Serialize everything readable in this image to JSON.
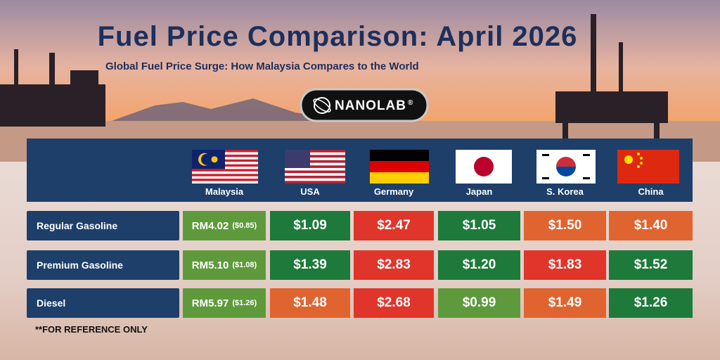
{
  "title": "Fuel Price Comparison: April 2026",
  "subtitle": "Global Fuel Price Surge: How Malaysia Compares to the World",
  "brand": "NANOLAB",
  "brand_mark": "®",
  "columns": [
    "Malaysia",
    "USA",
    "Germany",
    "Japan",
    "S. Korea",
    "China"
  ],
  "rows": [
    {
      "label": "Regular Gasoline",
      "cells": [
        {
          "text": "RM4.02",
          "note": "($0.85)",
          "color": "#5e9a3c"
        },
        {
          "text": "$1.09",
          "color": "#1d7a3a"
        },
        {
          "text": "$2.47",
          "color": "#e0352b"
        },
        {
          "text": "$1.05",
          "color": "#1d7a3a"
        },
        {
          "text": "$1.50",
          "color": "#e06430"
        },
        {
          "text": "$1.40",
          "color": "#e06430"
        }
      ]
    },
    {
      "label": "Premium Gasoline",
      "cells": [
        {
          "text": "RM5.10",
          "note": "($1.08)",
          "color": "#5e9a3c"
        },
        {
          "text": "$1.39",
          "color": "#1d7a3a"
        },
        {
          "text": "$2.83",
          "color": "#e0352b"
        },
        {
          "text": "$1.20",
          "color": "#1d7a3a"
        },
        {
          "text": "$1.83",
          "color": "#e0352b"
        },
        {
          "text": "$1.52",
          "color": "#1d7a3a"
        }
      ]
    },
    {
      "label": "Diesel",
      "cells": [
        {
          "text": "RM5.97",
          "note": "($1.26)",
          "color": "#5e9a3c"
        },
        {
          "text": "$1.48",
          "color": "#e06430"
        },
        {
          "text": "$2.68",
          "color": "#e0352b"
        },
        {
          "text": "$0.99",
          "color": "#5e9a3c"
        },
        {
          "text": "$1.49",
          "color": "#e06430"
        },
        {
          "text": "$1.26",
          "color": "#1d7a3a"
        }
      ]
    }
  ],
  "footnote": "**FOR REFERENCE ONLY"
}
